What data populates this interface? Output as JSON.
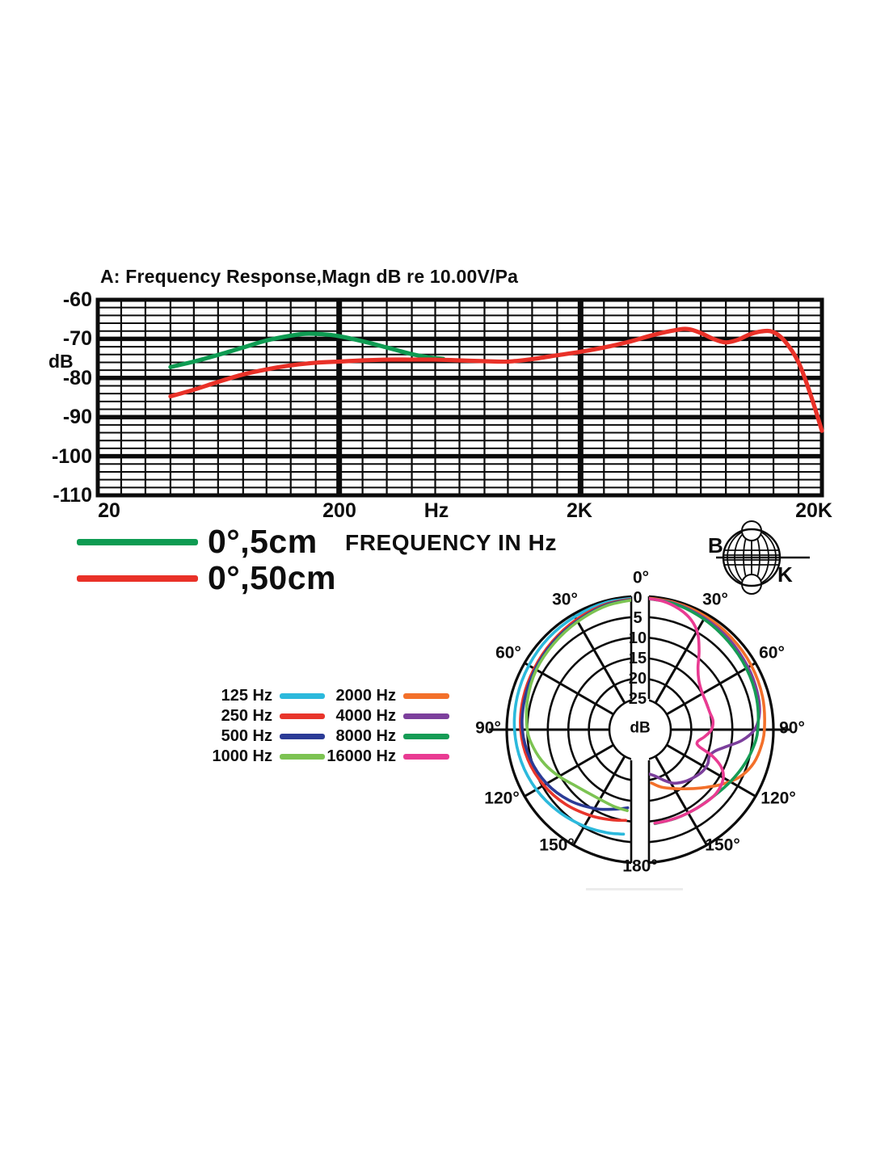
{
  "page": {
    "background": "#ffffff"
  },
  "logo": {
    "left_letter": "B",
    "right_letter": "K"
  },
  "chart_data": [
    {
      "id": "frequency-response",
      "type": "line",
      "title": "A: Frequency Response,Magn dB re 10.00V/Pa",
      "ylabel": "dB",
      "xscale": "log",
      "xlim": [
        20,
        20000
      ],
      "ylim": [
        -110,
        -60
      ],
      "y_ticks": [
        "-60",
        "-70",
        "-80",
        "-90",
        "-100",
        "-110"
      ],
      "x_ticks": [
        "20",
        "200",
        "2K",
        "20K"
      ],
      "x_unit_label": "Hz",
      "caption": "FREQUENCY IN Hz",
      "grid": {
        "minor_y_step_db": 2,
        "major_y_lines": [
          -70,
          -80,
          -90,
          -100
        ],
        "minor_x_multipliers": [
          1.25,
          1.575,
          2,
          2.5,
          3.15,
          4,
          5,
          6.3,
          8
        ],
        "major_x_values": [
          200,
          2000
        ]
      },
      "series": [
        {
          "name": "0°,5cm",
          "color": "#0e9b52",
          "points": [
            [
              40,
              -77.2
            ],
            [
              50,
              -75.8
            ],
            [
              63,
              -74.1
            ],
            [
              80,
              -72.2
            ],
            [
              100,
              -70.4
            ],
            [
              125,
              -69.2
            ],
            [
              145,
              -68.7
            ],
            [
              170,
              -68.8
            ],
            [
              200,
              -69.3
            ],
            [
              250,
              -70.6
            ],
            [
              315,
              -72.2
            ],
            [
              400,
              -73.9
            ],
            [
              470,
              -74.7
            ],
            [
              540,
              -75.1
            ]
          ]
        },
        {
          "name": "0°,50cm",
          "color": "#e93128",
          "points": [
            [
              40,
              -84.7
            ],
            [
              50,
              -83
            ],
            [
              63,
              -81
            ],
            [
              80,
              -79.1
            ],
            [
              100,
              -77.8
            ],
            [
              125,
              -76.8
            ],
            [
              160,
              -76.1
            ],
            [
              200,
              -75.8
            ],
            [
              250,
              -75.5
            ],
            [
              315,
              -75.3
            ],
            [
              400,
              -75.3
            ],
            [
              500,
              -75.3
            ],
            [
              630,
              -75.5
            ],
            [
              800,
              -75.7
            ],
            [
              1000,
              -75.8
            ],
            [
              1250,
              -75.2
            ],
            [
              1600,
              -74.2
            ],
            [
              2000,
              -73.3
            ],
            [
              2500,
              -72.2
            ],
            [
              3150,
              -70.8
            ],
            [
              4000,
              -69
            ],
            [
              5000,
              -67.7
            ],
            [
              5600,
              -67.5
            ],
            [
              6300,
              -68.5
            ],
            [
              7100,
              -70
            ],
            [
              8000,
              -70.9
            ],
            [
              9000,
              -70.2
            ],
            [
              10000,
              -68.9
            ],
            [
              11200,
              -68.1
            ],
            [
              12500,
              -68.2
            ],
            [
              14000,
              -70.5
            ],
            [
              16000,
              -76
            ],
            [
              18000,
              -84.5
            ],
            [
              20000,
              -93.5
            ]
          ]
        }
      ]
    },
    {
      "id": "polar-pattern",
      "type": "polar",
      "ring_unit": "dB",
      "ring_labels": [
        "0",
        "5",
        "10",
        "15",
        "20",
        "25"
      ],
      "ring_db_values": [
        0,
        5,
        10,
        15,
        20,
        25
      ],
      "max_ring_db": 25,
      "angle_step_deg": 30,
      "top_label": "0°",
      "bottom_label": "180°",
      "side_labels": [
        "30°",
        "60°",
        "90°",
        "120°",
        "150°"
      ],
      "series": [
        {
          "name": "125 Hz",
          "color": "#2cb9dc",
          "half": "left",
          "points": [
            [
              0,
              0.3
            ],
            [
              15,
              0.4
            ],
            [
              30,
              0.7
            ],
            [
              45,
              0.9
            ],
            [
              60,
              1.2
            ],
            [
              75,
              1.5
            ],
            [
              90,
              1.9
            ],
            [
              105,
              2.5
            ],
            [
              120,
              3.3
            ],
            [
              135,
              4.3
            ],
            [
              150,
              5.3
            ],
            [
              162,
              6.1
            ],
            [
              171,
              6.7
            ]
          ]
        },
        {
          "name": "250 Hz",
          "color": "#e8352b",
          "half": "left",
          "points": [
            [
              0,
              0.4
            ],
            [
              15,
              0.8
            ],
            [
              30,
              1.5
            ],
            [
              45,
              2.2
            ],
            [
              60,
              2.7
            ],
            [
              75,
              3.0
            ],
            [
              90,
              3.4
            ],
            [
              105,
              4.2
            ],
            [
              120,
              5.4
            ],
            [
              135,
              6.8
            ],
            [
              150,
              8.3
            ],
            [
              162,
              9.4
            ],
            [
              171,
              10.1
            ]
          ]
        },
        {
          "name": "500 Hz",
          "color": "#2b3b96",
          "half": "left",
          "points": [
            [
              0,
              0.5
            ],
            [
              15,
              1.0
            ],
            [
              30,
              1.9
            ],
            [
              45,
              2.5
            ],
            [
              60,
              3.0
            ],
            [
              75,
              3.4
            ],
            [
              90,
              3.8
            ],
            [
              105,
              4.8
            ],
            [
              120,
              6.2
            ],
            [
              135,
              8.1
            ],
            [
              150,
              10.3
            ],
            [
              162,
              12.1
            ],
            [
              171,
              13.2
            ]
          ]
        },
        {
          "name": "1000 Hz",
          "color": "#7cc352",
          "half": "left",
          "points": [
            [
              0,
              0.6
            ],
            [
              15,
              1.2
            ],
            [
              30,
              2.1
            ],
            [
              45,
              2.8
            ],
            [
              60,
              3.3
            ],
            [
              75,
              4.1
            ],
            [
              90,
              5.0
            ],
            [
              100,
              6.2
            ],
            [
              110,
              7.8
            ],
            [
              120,
              9.7
            ],
            [
              130,
              11.5
            ],
            [
              140,
              12.5
            ],
            [
              152,
              12.9
            ],
            [
              162,
              12.7
            ],
            [
              171,
              12.5
            ]
          ]
        },
        {
          "name": "2000 Hz",
          "color": "#f3702a",
          "half": "right",
          "points": [
            [
              0,
              0.2
            ],
            [
              15,
              0.4
            ],
            [
              30,
              0.6
            ],
            [
              45,
              0.9
            ],
            [
              60,
              1.2
            ],
            [
              75,
              1.6
            ],
            [
              90,
              2.2
            ],
            [
              100,
              2.9
            ],
            [
              108,
              3.9
            ],
            [
              116,
              5.8
            ],
            [
              124,
              8.6
            ],
            [
              132,
              11.4
            ],
            [
              140,
              13.7
            ],
            [
              150,
              15.9
            ],
            [
              160,
              17.6
            ],
            [
              168,
              19.2
            ]
          ]
        },
        {
          "name": "4000 Hz",
          "color": "#7c3f9c",
          "half": "right",
          "points": [
            [
              0,
              0.3
            ],
            [
              15,
              0.6
            ],
            [
              30,
              1.1
            ],
            [
              45,
              1.6
            ],
            [
              60,
              2.1
            ],
            [
              72,
              2.5
            ],
            [
              82,
              3.1
            ],
            [
              90,
              4.6
            ],
            [
              96,
              7.5
            ],
            [
              101,
              11
            ],
            [
              106,
              13.5
            ],
            [
              111,
              14.4
            ],
            [
              117,
              14
            ],
            [
              124,
              14.2
            ],
            [
              132,
              15
            ],
            [
              140,
              15.9
            ],
            [
              148,
              17.1
            ],
            [
              155,
              18.9
            ],
            [
              162,
              20.6
            ],
            [
              168,
              21.4
            ]
          ]
        },
        {
          "name": "8000 Hz",
          "color": "#169c55",
          "half": "right",
          "points": [
            [
              0,
              0.3
            ],
            [
              15,
              0.7
            ],
            [
              30,
              1.4
            ],
            [
              45,
              2.1
            ],
            [
              60,
              2.6
            ],
            [
              75,
              3.1
            ],
            [
              90,
              3.8
            ],
            [
              100,
              4.7
            ],
            [
              110,
              5.9
            ],
            [
              120,
              7.1
            ],
            [
              132,
              8.3
            ],
            [
              145,
              8.9
            ],
            [
              158,
              9.2
            ],
            [
              171,
              9.3
            ]
          ]
        },
        {
          "name": "16000 Hz",
          "color": "#e93b92",
          "half": "right",
          "points": [
            [
              0,
              0.3
            ],
            [
              10,
              0.7
            ],
            [
              18,
              1.6
            ],
            [
              25,
              3.0
            ],
            [
              31,
              5.2
            ],
            [
              37,
              8.6
            ],
            [
              43,
              11.8
            ],
            [
              50,
              13.8
            ],
            [
              58,
              14.8
            ],
            [
              68,
              15.1
            ],
            [
              76,
              15.0
            ],
            [
              83,
              14.6
            ],
            [
              90,
              15.1
            ],
            [
              96,
              16.6
            ],
            [
              102,
              18.2
            ],
            [
              106,
              17.5
            ],
            [
              110,
              13.8
            ],
            [
              115,
              10.6
            ],
            [
              121,
              8.9
            ],
            [
              130,
              8.3
            ],
            [
              140,
              8.7
            ],
            [
              152,
              9.1
            ],
            [
              162,
              9.3
            ],
            [
              171,
              9.4
            ]
          ]
        }
      ]
    }
  ]
}
